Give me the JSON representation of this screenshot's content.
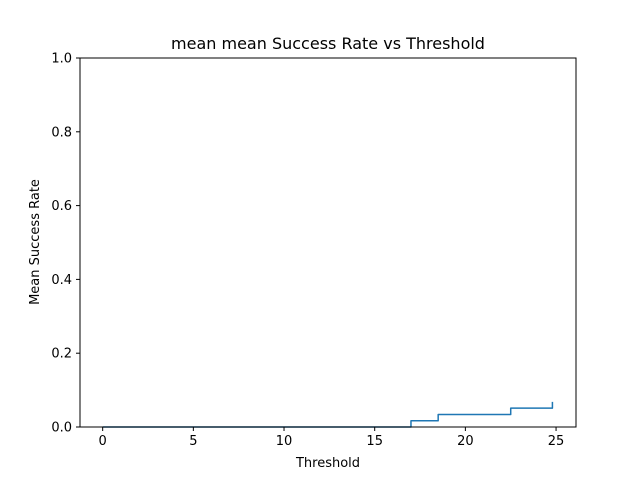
{
  "chart_data": {
    "type": "line",
    "title": "mean mean Success Rate vs Threshold",
    "xlabel": "Threshold",
    "ylabel": "Mean Success Rate",
    "xlim": [
      -1.25,
      26.1
    ],
    "ylim": [
      0.0,
      1.0
    ],
    "xticks": [
      0,
      5,
      10,
      15,
      20,
      25
    ],
    "xtick_labels": [
      "0",
      "5",
      "10",
      "15",
      "20",
      "25"
    ],
    "yticks": [
      0.0,
      0.2,
      0.4,
      0.6,
      0.8,
      1.0
    ],
    "ytick_labels": [
      "0.0",
      "0.2",
      "0.4",
      "0.6",
      "0.8",
      "1.0"
    ],
    "grid": false,
    "series": [
      {
        "color": "#1f77b4",
        "x": [
          0,
          17.0,
          17.0,
          18.5,
          18.5,
          22.5,
          22.5,
          24.8,
          24.8
        ],
        "y": [
          0.0,
          0.0,
          0.017,
          0.017,
          0.034,
          0.034,
          0.051,
          0.051,
          0.068
        ]
      }
    ]
  }
}
